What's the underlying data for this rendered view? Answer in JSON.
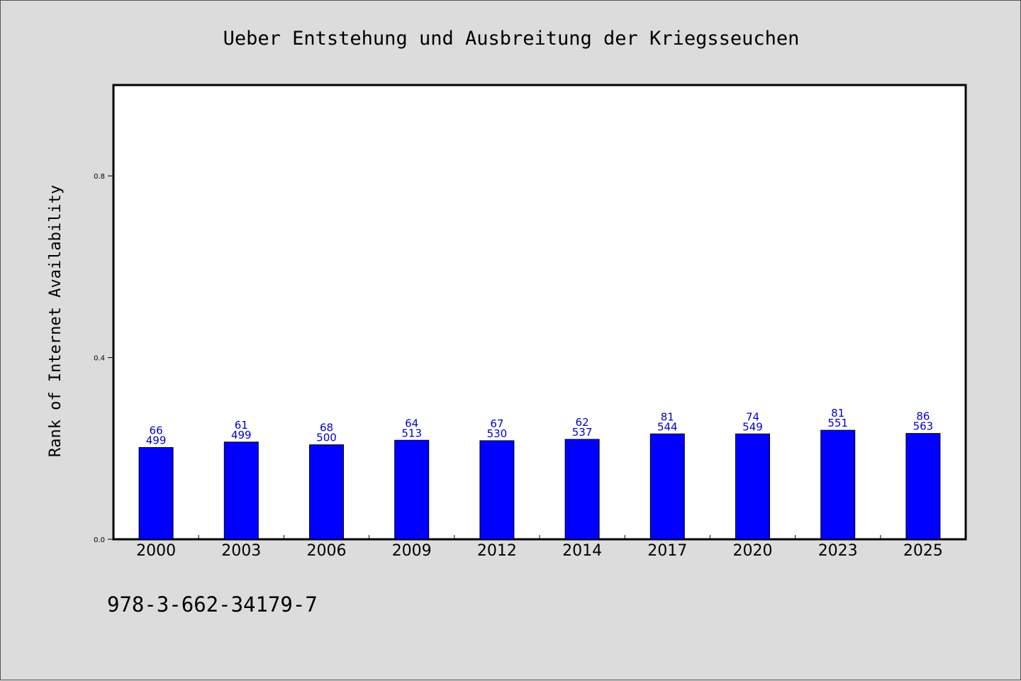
{
  "chart_data": {
    "type": "bar",
    "title": "Ueber Entstehung und Ausbreitung der Kriegsseuchen",
    "xlabel": "",
    "ylabel": "Rank of Internet Availability",
    "categories": [
      "2000",
      "2003",
      "2006",
      "2009",
      "2012",
      "2014",
      "2017",
      "2020",
      "2023",
      "2025"
    ],
    "series": [
      {
        "values": [
          0.202,
          0.214,
          0.208,
          0.218,
          0.217,
          0.22,
          0.232,
          0.232,
          0.24,
          0.233
        ],
        "top_labels": [
          "66",
          "61",
          "68",
          "64",
          "67",
          "62",
          "81",
          "74",
          "81",
          "86"
        ],
        "bottom_labels": [
          "499",
          "499",
          "500",
          "513",
          "530",
          "537",
          "544",
          "549",
          "551",
          "563"
        ]
      }
    ],
    "ylim": [
      0,
      1.0
    ],
    "yticks": [
      0.0,
      0.4,
      0.8
    ],
    "ytick_labels": [
      "0.0",
      "0.4",
      "0.8"
    ],
    "grid": false,
    "bar_color": "#0000ff",
    "label_color": "#0000cc"
  },
  "footer": {
    "isbn": "978-3-662-34179-7"
  }
}
